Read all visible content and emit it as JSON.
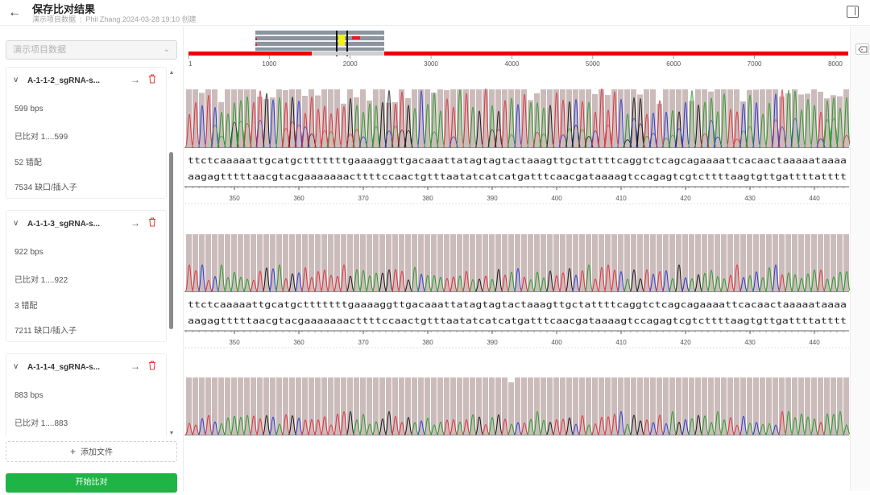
{
  "header": {
    "title": "保存比对结果",
    "project": "演示项目数据",
    "author": "Phil Zhang",
    "datetime": "2024-03-28 19:10",
    "created_label": "创建"
  },
  "sidebar": {
    "project_select": "演示项目数据",
    "add_file_label": "添加文件",
    "start_label": "开始比对",
    "samples": [
      {
        "name": "A-1-1-2_sgRNA-s...",
        "length": "599 bps",
        "aligned": "已比对 1....599",
        "mismatch": "52 错配",
        "indel": "7534 缺口/插入子"
      },
      {
        "name": "A-1-1-3_sgRNA-s...",
        "length": "922 bps",
        "aligned": "已比对 1....922",
        "mismatch": "3 错配",
        "indel": "7211 缺口/插入子"
      },
      {
        "name": "A-1-1-4_sgRNA-s...",
        "length": "883 bps",
        "aligned": "已比对 1....883",
        "mismatch": "",
        "indel": ""
      }
    ]
  },
  "overview": {
    "ticks": [
      "1",
      "1000",
      "2000",
      "3000",
      "4000",
      "5000",
      "6000",
      "7000",
      "8000"
    ]
  },
  "tracks": {
    "seq_top": "ttctcaaaaattgcatgctttttttgaaaaggttgacaaattatagtagtactaaagttgctattttcaggtctcagcagaaaattcacaactaaaaataaaa",
    "seq_bottom": "aagagtttttaacgtacgaaaaaaacttttccaactgtttaatatcatcatgatttcaacgataaaagtccagagtcgtcttttaagtgttgattttatttt",
    "position_labels": [
      "350",
      "360",
      "370",
      "380",
      "390",
      "400",
      "410",
      "420",
      "430",
      "440"
    ]
  },
  "colors": {
    "accent_green": "#1fb446",
    "base_a": "#2a9a2a",
    "base_c": "#2b39d6",
    "base_g": "#1a1a1a",
    "base_t": "#e0303c",
    "quality": "#cbbcbb",
    "reference_red": "#ee0000"
  }
}
